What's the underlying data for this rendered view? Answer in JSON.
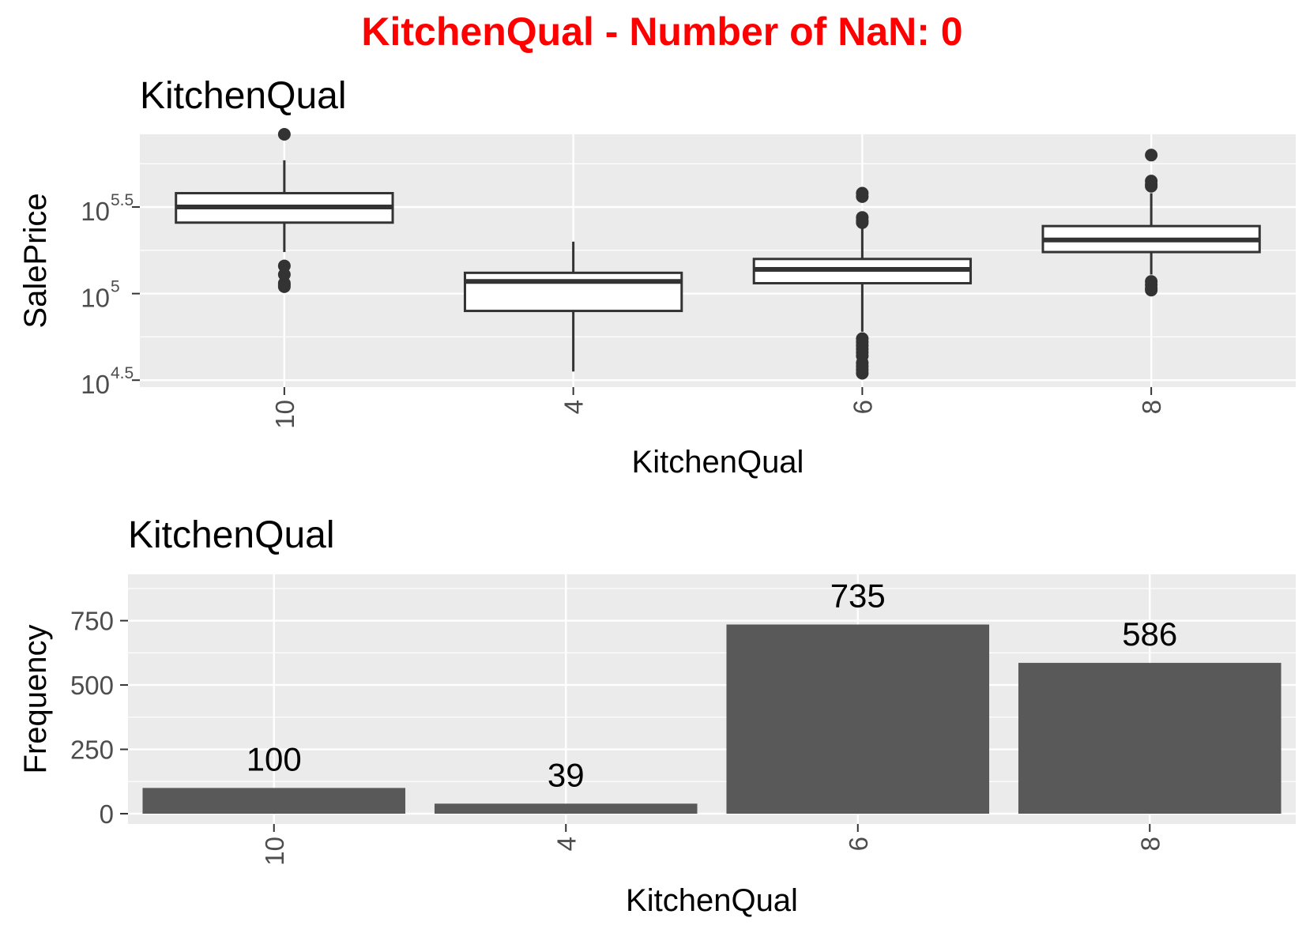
{
  "main_title": "KitchenQual - Number of NaN: 0",
  "main_title_color": "#ff0000",
  "chart_data": [
    {
      "type": "boxplot",
      "title": "KitchenQual",
      "xlabel": "KitchenQual",
      "ylabel": "SalePrice",
      "y_scale": "log10",
      "categories": [
        "10",
        "4",
        "6",
        "8"
      ],
      "y_ticks": [
        {
          "value": 4.5,
          "base": "10",
          "exp": "4.5"
        },
        {
          "value": 5,
          "base": "10",
          "exp": "5"
        },
        {
          "value": 5.5,
          "base": "10",
          "exp": "5.5"
        }
      ],
      "ylim_log10": [
        4.46,
        5.92
      ],
      "boxes": [
        {
          "category": "10",
          "whisker_low": 5.24,
          "q1": 5.41,
          "median": 5.5,
          "q3": 5.58,
          "whisker_high": 5.77,
          "outliers": [
            5.92,
            5.16,
            5.11,
            5.06,
            5.05,
            5.04
          ]
        },
        {
          "category": "4",
          "whisker_low": 4.55,
          "q1": 4.9,
          "median": 5.07,
          "q3": 5.12,
          "whisker_high": 5.3,
          "outliers": []
        },
        {
          "category": "6",
          "whisker_low": 4.78,
          "q1": 5.06,
          "median": 5.14,
          "q3": 5.2,
          "whisker_high": 5.38,
          "outliers": [
            5.58,
            5.56,
            5.44,
            5.42,
            5.41,
            4.74,
            4.72,
            4.7,
            4.68,
            4.66,
            4.64,
            4.6,
            4.58,
            4.56,
            4.54
          ]
        },
        {
          "category": "8",
          "whisker_low": 5.11,
          "q1": 5.24,
          "median": 5.31,
          "q3": 5.39,
          "whisker_high": 5.58,
          "outliers": [
            5.8,
            5.65,
            5.63,
            5.62,
            5.07,
            5.05,
            5.03,
            5.02
          ]
        }
      ],
      "fill": "#ffffff",
      "stroke": "#333333",
      "panel_bg": "#ebebeb",
      "grid": true
    },
    {
      "type": "bar",
      "title": "KitchenQual",
      "xlabel": "KitchenQual",
      "ylabel": "Frequency",
      "categories": [
        "10",
        "4",
        "6",
        "8"
      ],
      "values": [
        100,
        39,
        735,
        586
      ],
      "data_labels": [
        "100",
        "39",
        "735",
        "586"
      ],
      "y_ticks": [
        0,
        250,
        500,
        750
      ],
      "ylim": [
        -40,
        930
      ],
      "bar_color": "#595959",
      "panel_bg": "#ebebeb",
      "grid": true
    }
  ]
}
